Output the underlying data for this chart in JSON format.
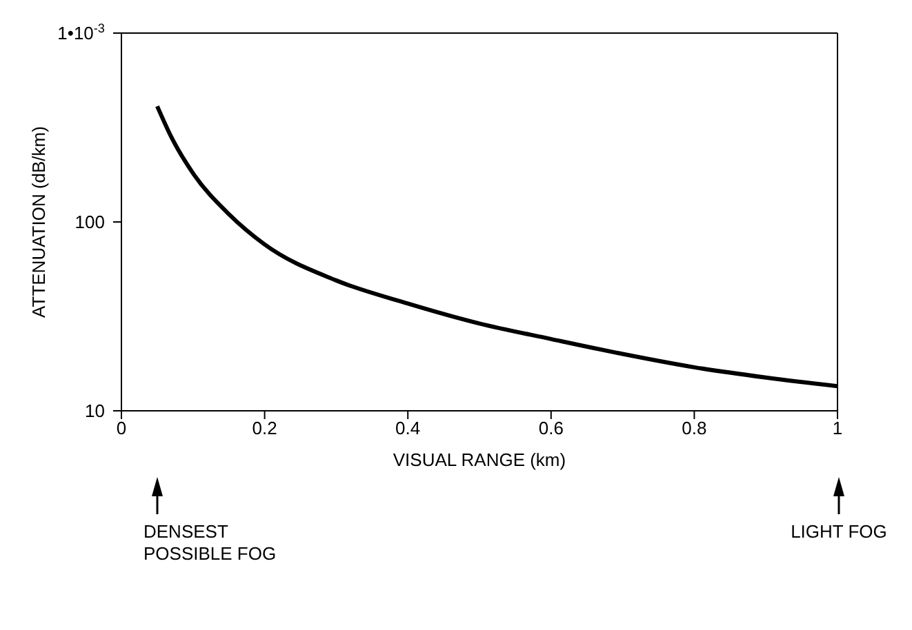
{
  "chart_data": {
    "type": "line",
    "xlabel": "VISUAL RANGE (km)",
    "ylabel": "ATTENUATION (dB/km)",
    "x": [
      0.05,
      0.07,
      0.1,
      0.15,
      0.2,
      0.3,
      0.4,
      0.5,
      0.6,
      0.7,
      0.8,
      0.9,
      1.0
    ],
    "series": [
      {
        "color": "#000000",
        "values": [
          410,
          280,
          181,
          110,
          76,
          49,
          37,
          29,
          24,
          20,
          17,
          15,
          13.5
        ]
      }
    ],
    "log": "y",
    "xlim": [
      0,
      1
    ],
    "xticks": [
      0,
      0.2,
      0.4,
      0.6,
      0.8,
      1
    ],
    "ylim": [
      10,
      1000
    ],
    "yticks": [
      10,
      100,
      {
        "value": 1000,
        "label": "1•10$^{-3}$"
      }
    ],
    "marker": "none",
    "line_style": "solid",
    "annotations": [
      "DENSEST\nPOSSIBLE FOG",
      "LIGHT FOG"
    ]
  }
}
